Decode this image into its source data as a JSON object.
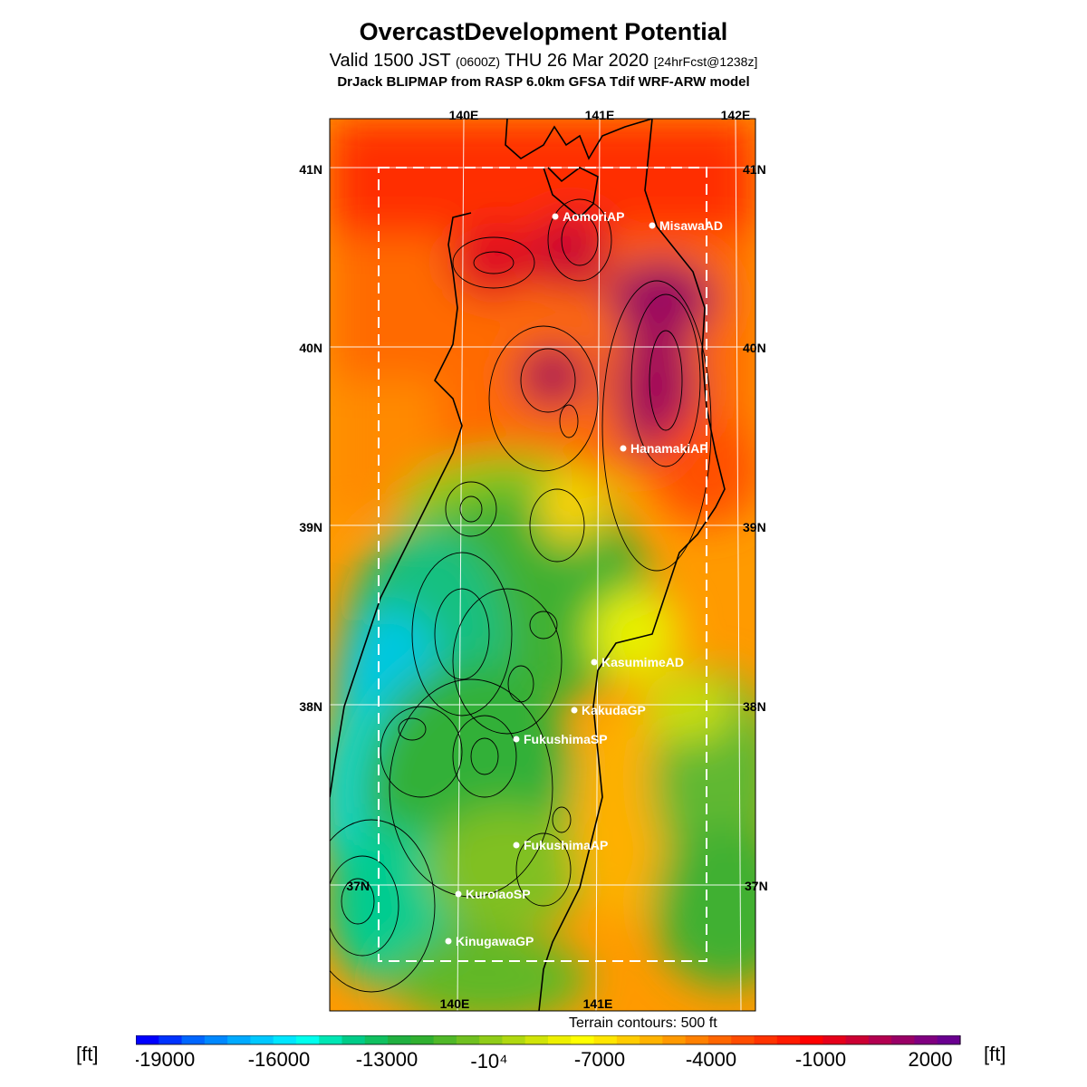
{
  "header": {
    "title": "OvercastDevelopment Potential",
    "subtitle_main": "Valid 1500 JST",
    "subtitle_z": "(0600Z)",
    "subtitle_date": "THU 26 Mar 2020",
    "subtitle_fcst": "[24hrFcst@1238z]",
    "model": "DrJack BLIPMAP from RASP 6.0km GFSA Tdif WRF-ARW model"
  },
  "map": {
    "lon_labels_top": [
      "140E",
      "141E",
      "142E"
    ],
    "lon_labels_bottom": [
      "140E",
      "141E"
    ],
    "lat_labels_left": [
      "41N",
      "40N",
      "39N",
      "38N",
      "37N"
    ],
    "lat_labels_right": [
      "41N",
      "40N",
      "39N",
      "38N",
      "37N"
    ],
    "stations": [
      "AomoriAP",
      "MisawaAD",
      "HanamakiAP",
      "KasumimeAD",
      "KakudaGP",
      "FukushimaSP",
      "FukushimaAP",
      "KuroiaoSP",
      "KinugawaGP"
    ]
  },
  "footer": {
    "terrain_note": "Terrain contours: 500 ft"
  },
  "colorbar": {
    "unit": "[ft]",
    "tick_labels": [
      "-19000",
      "-16000",
      "-13000",
      "-10⁴",
      "-7000",
      "-4000",
      "-1000",
      "2000"
    ],
    "colors": [
      "#0000ff",
      "#0033ff",
      "#0066ff",
      "#0088ff",
      "#00aaff",
      "#00c8ff",
      "#00e6ff",
      "#00ffee",
      "#00e6b4",
      "#00cc88",
      "#10c060",
      "#20b040",
      "#30b030",
      "#50b828",
      "#70c020",
      "#90cc18",
      "#b0d810",
      "#d0e408",
      "#eef000",
      "#ffff00",
      "#ffe600",
      "#ffcc00",
      "#ffb300",
      "#ff9900",
      "#ff8000",
      "#ff6600",
      "#ff4c00",
      "#ff3300",
      "#ff1a00",
      "#ff0000",
      "#e6001a",
      "#cc0033",
      "#b30050",
      "#990066",
      "#800080",
      "#6a0090"
    ]
  }
}
